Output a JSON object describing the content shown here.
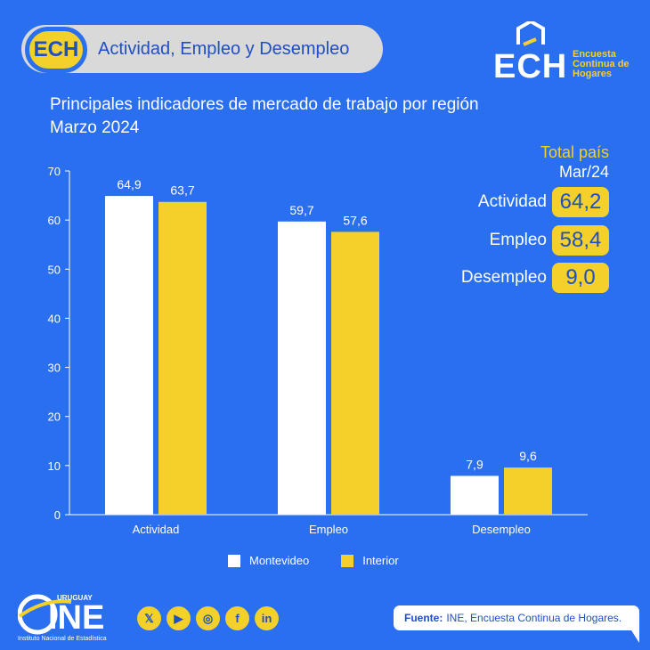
{
  "header": {
    "badge": "ECH",
    "pill_text": "Actividad, Empleo y Desempleo",
    "logo_main": "ECH",
    "logo_sub": "Encuesta Continua de Hogares"
  },
  "chart_data": {
    "type": "bar",
    "title": "Principales indicadores de mercado de trabajo por región",
    "subtitle": "Marzo 2024",
    "categories": [
      "Actividad",
      "Empleo",
      "Desempleo"
    ],
    "series": [
      {
        "name": "Montevideo",
        "values": [
          64.9,
          59.7,
          7.9
        ],
        "labels": [
          "64,9",
          "59,7",
          "7,9"
        ],
        "color": "#ffffff"
      },
      {
        "name": "Interior",
        "values": [
          63.7,
          57.6,
          9.6
        ],
        "labels": [
          "63,7",
          "57,6",
          "9,6"
        ],
        "color": "#f3d02a"
      }
    ],
    "ylim": [
      0,
      70
    ],
    "yticks": [
      "0",
      "10",
      "20",
      "30",
      "40",
      "50",
      "60",
      "70"
    ],
    "grid": false,
    "legend": "bottom"
  },
  "total_pais": {
    "heading": "Total país",
    "period": "Mar/24",
    "rows": [
      {
        "label": "Actividad",
        "value": "64,2"
      },
      {
        "label": "Empleo",
        "value": "58,4"
      },
      {
        "label": "Desempleo",
        "value": "9,0"
      }
    ]
  },
  "footer": {
    "ine_name": "INE",
    "ine_top": "URUGUAY",
    "ine_sub": "Instituto Nacional de Estadística",
    "social_icons": [
      "x-icon",
      "youtube-icon",
      "instagram-icon",
      "facebook-icon",
      "linkedin-icon"
    ],
    "source_label": "Fuente:",
    "source_text": "INE, Encuesta Continua de Hogares."
  },
  "colors": {
    "background": "#2a6ff0",
    "accent": "#f3d02a",
    "dark_blue": "#1e4fc4"
  }
}
